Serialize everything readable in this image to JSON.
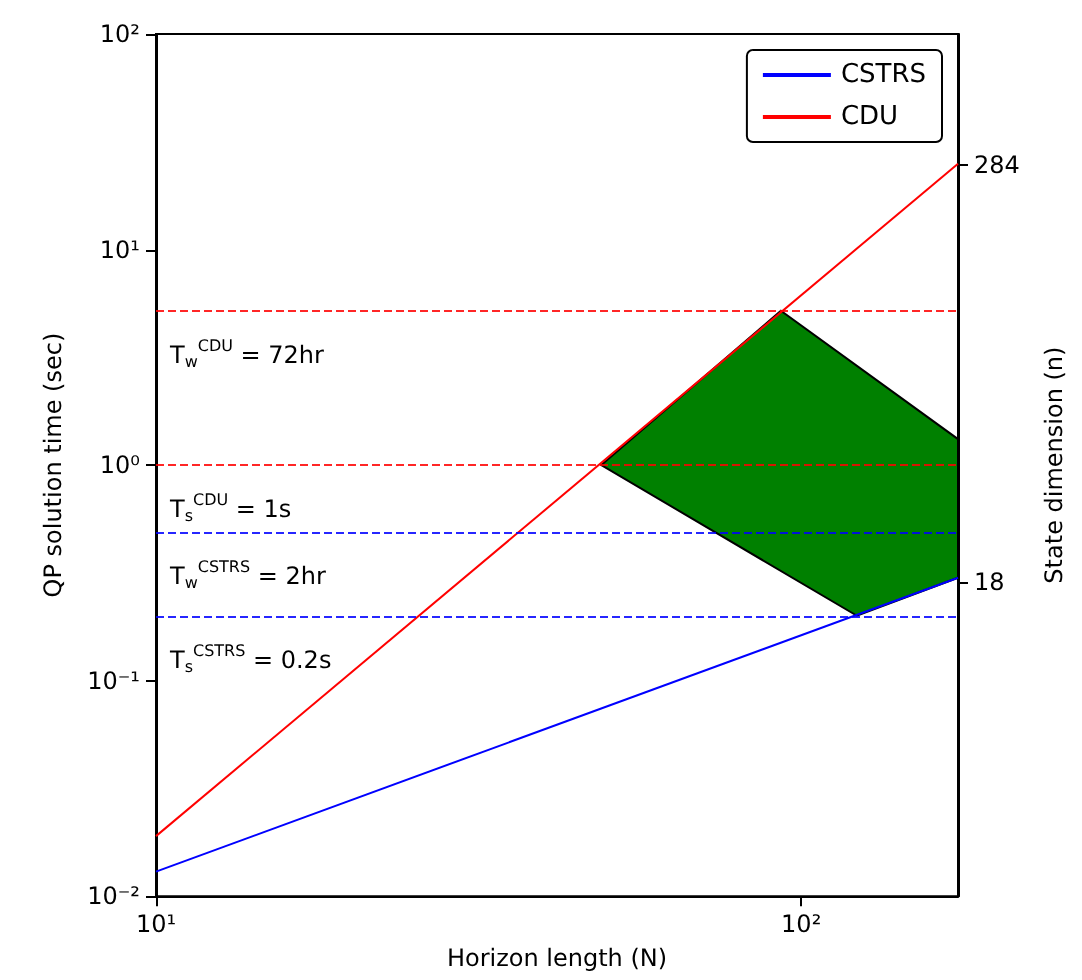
{
  "chart_data": {
    "type": "line",
    "xlabel": "Horizon length (N)",
    "ylabel": "QP solution time (sec)",
    "y2label": "State dimension (n)",
    "log": "xy",
    "grid": false,
    "legend": "top right",
    "xlim": [
      10,
      175
    ],
    "xticks": [
      {
        "value": 10,
        "label": "10¹"
      },
      {
        "value": 100,
        "label": "10²"
      }
    ],
    "ylim": [
      0.01,
      100
    ],
    "yticks": [
      {
        "value": 0.01,
        "label": "10⁻²"
      },
      {
        "value": 0.1,
        "label": "10⁻¹"
      },
      {
        "value": 1,
        "label": "10⁰"
      },
      {
        "value": 10,
        "label": "10¹"
      },
      {
        "value": 100,
        "label": "10²"
      }
    ],
    "y2lim": [
      -183,
      368
    ],
    "y2ticks": [
      18,
      284
    ],
    "series": [
      {
        "name": "CSTRS",
        "color": "#0000ff",
        "x": [
          10,
          175
        ],
        "values": [
          0.013,
          0.3
        ]
      },
      {
        "name": "CDU",
        "color": "#ff0000",
        "x": [
          10,
          175
        ],
        "values": [
          0.019,
          25
        ]
      },
      {
        "type": "area",
        "color": "#008000",
        "x": [
          49,
          93,
          175,
          175,
          122,
          49
        ],
        "values": [
          1,
          5.2,
          1.32,
          0.3,
          0.2,
          1
        ]
      }
    ],
    "ref_lines": [
      {
        "axis": "y",
        "value": 5.2,
        "color": "#ff0000",
        "line_style": "dashed"
      },
      {
        "axis": "y",
        "value": 1,
        "color": "#ff0000",
        "line_style": "dashed"
      },
      {
        "axis": "y",
        "value": 0.49,
        "color": "#0000ff",
        "line_style": "dashed"
      },
      {
        "axis": "y",
        "value": 0.2,
        "color": "#0000ff",
        "line_style": "dashed"
      }
    ],
    "annotations": [
      {
        "text": "T$_{w}$$^{CDU}$ = 72hr",
        "y": 5.2
      },
      {
        "text": "T$_{s}$$^{CDU}$ = 1s",
        "y": 1
      },
      {
        "text": "T$_{w}$$^{CSTRS}$ = 2hr",
        "y": 0.49
      },
      {
        "text": "T$_{s}$$^{CSTRS}$ = 0.2s",
        "y": 0.2
      }
    ]
  }
}
